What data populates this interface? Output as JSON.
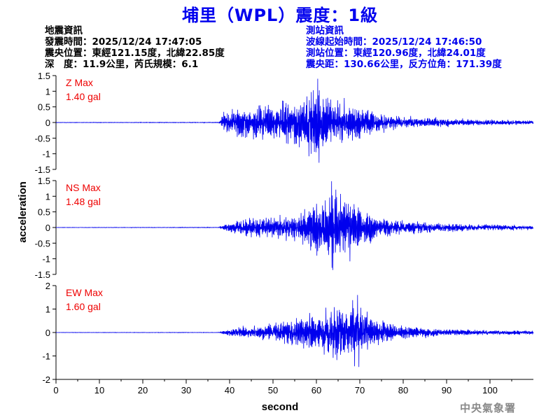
{
  "title": "埔里（WPL）震度：1級",
  "event_info": {
    "heading": "地震資訊",
    "origin_time": "發震時間：2025/12/24 17:47:05",
    "epicenter": "震央位置：東經121.15度，北緯22.85度",
    "depth_magnitude": "深　度：11.9公里，芮氏規模：6.1"
  },
  "station_info": {
    "heading": "測站資訊",
    "wave_start": "波線起始時間：2025/12/24 17:46:50",
    "location": "測站位置：東經120.96度，北緯24.01度",
    "distance": "震央距：130.66公里，反方位角：171.39度"
  },
  "watermark": "中央氣象署",
  "chart_data": {
    "type": "line",
    "xlabel": "second",
    "ylabel": "acceleration",
    "xlim": [
      0,
      110
    ],
    "x_ticks": [
      "0",
      "10",
      "20",
      "30",
      "40",
      "50",
      "60",
      "70",
      "80",
      "90",
      "100"
    ],
    "line_color": "#0000ee",
    "panels": [
      {
        "component": "Z",
        "max_label": "Z Max",
        "max_value": "1.40 gal",
        "ylim": [
          -1.5,
          1.5
        ],
        "y_ticks": [
          "1.5",
          "1",
          "0.5",
          "0",
          "-0.5",
          "-1",
          "-1.5"
        ],
        "peak": 1.4,
        "peak_time": 60.3,
        "envelope": [
          [
            0,
            0.008
          ],
          [
            37.5,
            0.01
          ],
          [
            38.5,
            0.3
          ],
          [
            41,
            0.45
          ],
          [
            45,
            0.55
          ],
          [
            50,
            0.6
          ],
          [
            55,
            0.7
          ],
          [
            58,
            0.95
          ],
          [
            60,
            1.3
          ],
          [
            63,
            0.9
          ],
          [
            66,
            0.75
          ],
          [
            70,
            0.5
          ],
          [
            75,
            0.3
          ],
          [
            80,
            0.2
          ],
          [
            90,
            0.13
          ],
          [
            100,
            0.09
          ],
          [
            110,
            0.06
          ]
        ]
      },
      {
        "component": "NS",
        "max_label": "NS Max",
        "max_value": "1.48 gal",
        "ylim": [
          -1.5,
          1.5
        ],
        "y_ticks": [
          "1.5",
          "1",
          "0.5",
          "0",
          "-0.5",
          "-1",
          "-1.5"
        ],
        "peak": 1.48,
        "peak_time": 63.5,
        "envelope": [
          [
            0,
            0.006
          ],
          [
            37.5,
            0.01
          ],
          [
            39,
            0.12
          ],
          [
            42,
            0.25
          ],
          [
            46,
            0.3
          ],
          [
            50,
            0.35
          ],
          [
            55,
            0.45
          ],
          [
            58,
            0.75
          ],
          [
            62,
            1.05
          ],
          [
            64,
            1.35
          ],
          [
            67,
            1.1
          ],
          [
            70,
            0.7
          ],
          [
            75,
            0.35
          ],
          [
            80,
            0.22
          ],
          [
            90,
            0.15
          ],
          [
            100,
            0.1
          ],
          [
            110,
            0.07
          ]
        ]
      },
      {
        "component": "EW",
        "max_label": "EW Max",
        "max_value": "1.60 gal",
        "ylim": [
          -2,
          2
        ],
        "y_ticks": [
          "2",
          "1",
          "0",
          "-1",
          "-2"
        ],
        "peak": 1.6,
        "peak_time": 69.5,
        "envelope": [
          [
            0,
            0.008
          ],
          [
            37.5,
            0.01
          ],
          [
            39,
            0.12
          ],
          [
            42,
            0.25
          ],
          [
            46,
            0.3
          ],
          [
            50,
            0.4
          ],
          [
            55,
            0.55
          ],
          [
            58,
            0.8
          ],
          [
            62,
            1.0
          ],
          [
            66,
            1.2
          ],
          [
            68,
            1.3
          ],
          [
            70,
            1.1
          ],
          [
            73,
            0.7
          ],
          [
            77,
            0.4
          ],
          [
            82,
            0.25
          ],
          [
            90,
            0.16
          ],
          [
            100,
            0.11
          ],
          [
            110,
            0.08
          ]
        ]
      }
    ]
  }
}
